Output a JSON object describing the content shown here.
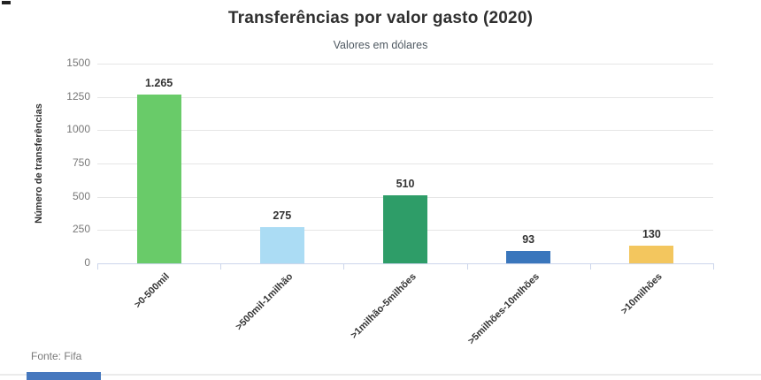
{
  "chart_data": {
    "type": "bar",
    "title": "Transferências por valor gasto (2020)",
    "subtitle": "Valores em dólares",
    "categories": [
      ">0-500mil",
      ">500mil-1milhão",
      ">1milhão-5milhões",
      ">5milhões-10mlhões",
      ">10milhões"
    ],
    "values": [
      1265,
      275,
      510,
      93,
      130
    ],
    "value_labels": [
      "1.265",
      "275",
      "510",
      "93",
      "130"
    ],
    "bar_colors": [
      "#69cb69",
      "#abdcf4",
      "#2e9d68",
      "#3a76bc",
      "#f3c65e"
    ],
    "xlabel": "",
    "ylabel": "Número de transferências",
    "ylim": [
      0,
      1500
    ],
    "yticks": [
      0,
      250,
      500,
      750,
      1000,
      1250,
      1500
    ],
    "grid": true,
    "legend": "none",
    "source": "Fonte: Fifa"
  },
  "colors": {
    "title": "#2f2f2f",
    "subtitle": "#4f5962",
    "tick_label": "#777777",
    "data_label": "#333333",
    "grid": "#e6e6e6",
    "axis": "#ccd6eb",
    "credit": "#7a7a7a",
    "divider": "#ebebeb",
    "bottom_bar": "#4678be"
  }
}
